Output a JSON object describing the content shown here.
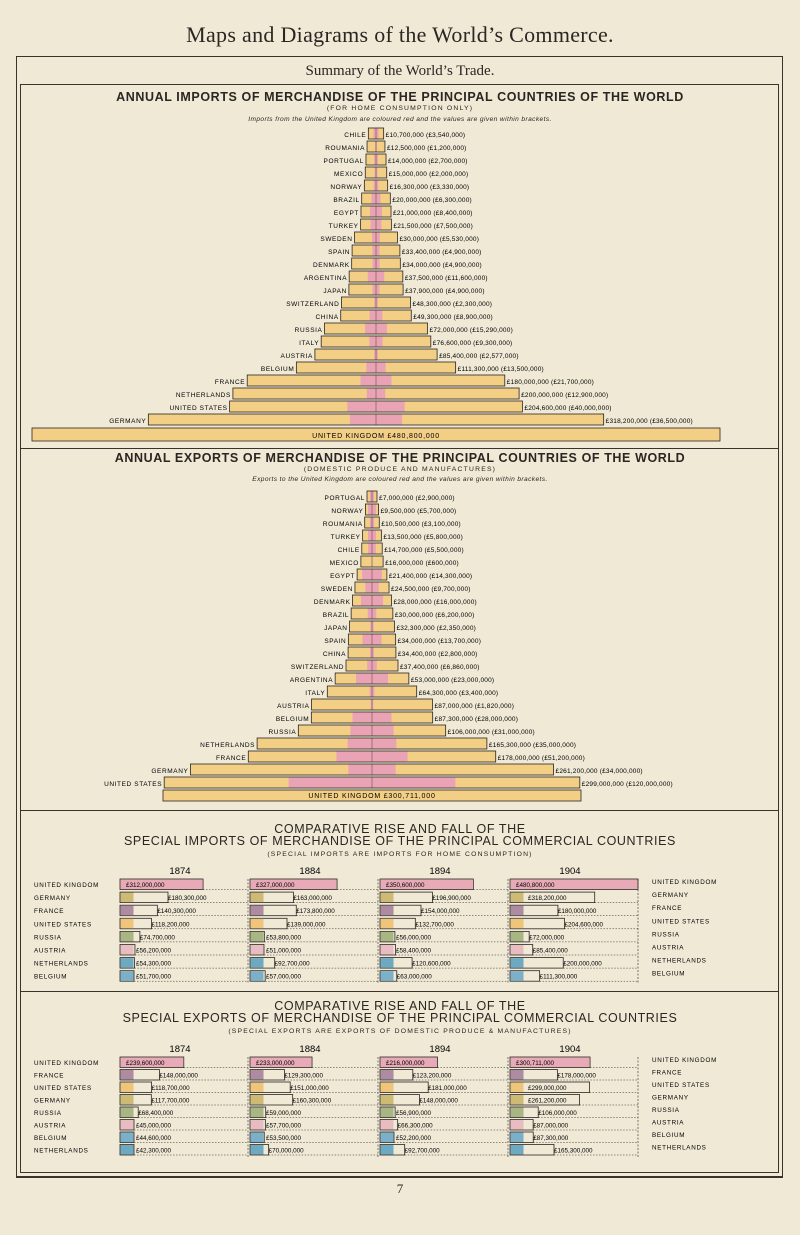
{
  "page": {
    "title": "Maps and Diagrams of the World’s Commerce.",
    "subtitle": "Summary of the World’s Trade.",
    "page_number": "7"
  },
  "colors": {
    "paper": "#efe9d6",
    "pyramid_bar": "#f3cf86",
    "uk_share": "#eaa3b4",
    "ink": "#2a2622",
    "united_kingdom": "#e7a3b3",
    "germany": "#c8b56a",
    "france": "#a6819a",
    "united_states": "#eec171",
    "russia": "#9fb07a",
    "austria": "#e7b8c0",
    "netherlands": "#5ea2bf",
    "belgium": "#6fa8c7"
  },
  "imports_section": {
    "title": "ANNUAL IMPORTS OF MERCHANDISE OF THE PRINCIPAL COUNTRIES OF THE WORLD",
    "subtitle": "(FOR HOME CONSUMPTION ONLY)",
    "note": "Imports from the United Kingdom are coloured red and the values are given within brackets."
  },
  "exports_section": {
    "title": "ANNUAL EXPORTS OF MERCHANDISE OF THE PRINCIPAL COUNTRIES OF THE WORLD",
    "subtitle": "(DOMESTIC PRODUCE AND MANUFACTURES)",
    "note": "Exports to the United Kingdom are coloured red and the values are given within brackets."
  },
  "special_imports_section": {
    "title_line1": "COMPARATIVE RISE AND FALL OF THE",
    "title_line2": "SPECIAL IMPORTS OF MERCHANDISE OF THE PRINCIPAL COMMERCIAL COUNTRIES",
    "subtitle": "(SPECIAL IMPORTS ARE IMPORTS FOR HOME CONSUMPTION)"
  },
  "special_exports_section": {
    "title_line1": "COMPARATIVE RISE AND FALL OF THE",
    "title_line2": "SPECIAL EXPORTS OF MERCHANDISE OF THE PRINCIPAL COMMERCIAL COUNTRIES",
    "subtitle": "(SPECIAL EXPORTS ARE EXPORTS OF DOMESTIC PRODUCE & MANUFACTURES)"
  },
  "chart_data": [
    {
      "type": "bar",
      "title": "ANNUAL IMPORTS OF MERCHANDISE OF THE PRINCIPAL COUNTRIES OF THE WORLD",
      "unit": "£",
      "categories": [
        "CHILE",
        "ROUMANIA",
        "PORTUGAL",
        "MEXICO",
        "NORWAY",
        "BRAZIL",
        "EGYPT",
        "TURKEY",
        "SWEDEN",
        "SPAIN",
        "DENMARK",
        "ARGENTINA",
        "JAPAN",
        "SWITZERLAND",
        "CHINA",
        "RUSSIA",
        "ITALY",
        "AUSTRIA",
        "BELGIUM",
        "FRANCE",
        "NETHERLANDS",
        "UNITED STATES",
        "GERMANY",
        "UNITED KINGDOM"
      ],
      "labels": [
        "£10,700,000 (£3,540,000)",
        "£12,500,000 (£1,200,000)",
        "£14,000,000 (£2,700,000)",
        "£15,000,000 (£2,000,000)",
        "£16,300,000 (£3,330,000)",
        "£20,000,000 (£6,300,000)",
        "£21,000,000 (£8,400,000)",
        "£21,500,000 (£7,500,000)",
        "£30,000,000 (£5,530,000)",
        "£33,400,000 (£4,900,000)",
        "£34,000,000 (£4,900,000)",
        "£37,500,000 (£11,600,000)",
        "£37,900,000 (£4,900,000)",
        "£48,300,000 (£2,300,000)",
        "£49,300,000 (£8,900,000)",
        "£72,000,000 (£15,290,000)",
        "£76,600,000 (£9,300,000)",
        "£85,400,000 (£2,577,000)",
        "£111,300,000 (£13,500,000)",
        "£180,000,000 (£21,700,000)",
        "£200,000,000 (£12,900,000)",
        "£204,600,000 (£40,000,000)",
        "£318,200,000 (£36,500,000)",
        "UNITED KINGDOM £480,800,000"
      ],
      "series": [
        {
          "name": "Imports",
          "values": [
            10700000,
            12500000,
            14000000,
            15000000,
            16300000,
            20000000,
            21000000,
            21500000,
            30000000,
            33400000,
            34000000,
            37500000,
            37900000,
            48300000,
            49300000,
            72000000,
            76600000,
            85400000,
            111300000,
            180000000,
            200000000,
            204600000,
            318200000,
            480800000
          ]
        },
        {
          "name": "Imports from the United Kingdom",
          "values": [
            3540000,
            1200000,
            2700000,
            2000000,
            3330000,
            6300000,
            8400000,
            7500000,
            5530000,
            4900000,
            4900000,
            11600000,
            4900000,
            2300000,
            8900000,
            15290000,
            9300000,
            2577000,
            13500000,
            21700000,
            12900000,
            40000000,
            36500000,
            null
          ]
        }
      ]
    },
    {
      "type": "bar",
      "title": "ANNUAL EXPORTS OF MERCHANDISE OF THE PRINCIPAL COUNTRIES OF THE WORLD",
      "unit": "£",
      "categories": [
        "PORTUGAL",
        "NORWAY",
        "ROUMANIA",
        "TURKEY",
        "CHILE",
        "MEXICO",
        "EGYPT",
        "SWEDEN",
        "DENMARK",
        "BRAZIL",
        "JAPAN",
        "SPAIN",
        "CHINA",
        "SWITZERLAND",
        "ARGENTINA",
        "ITALY",
        "AUSTRIA",
        "BELGIUM",
        "RUSSIA",
        "NETHERLANDS",
        "FRANCE",
        "GERMANY",
        "UNITED STATES",
        "UNITED KINGDOM"
      ],
      "labels": [
        "£7,000,000 (£2,900,000)",
        "£9,500,000 (£5,700,000)",
        "£10,500,000 (£3,100,000)",
        "£13,500,000 (£5,800,000)",
        "£14,700,000 (£5,500,000)",
        "£16,000,000 (£600,000)",
        "£21,400,000 (£14,300,000)",
        "£24,500,000 (£9,700,000)",
        "£28,000,000 (£16,000,000)",
        "£30,000,000 (£6,200,000)",
        "£32,300,000 (£2,350,000)",
        "£34,000,000 (£13,700,000)",
        "£34,400,000 (£2,800,000)",
        "£37,400,000 (£6,860,000)",
        "£53,000,000 (£23,000,000)",
        "£64,300,000 (£3,400,000)",
        "£87,000,000 (£1,820,000)",
        "£87,300,000 (£28,000,000)",
        "£106,000,000 (£31,000,000)",
        "£165,300,000 (£35,000,000)",
        "£178,000,000 (£51,200,000)",
        "£261,200,000 (£34,000,000)",
        "£299,000,000 (£120,000,000)",
        "UNITED KINGDOM £300,711,000"
      ],
      "series": [
        {
          "name": "Exports",
          "values": [
            7000000,
            9500000,
            10500000,
            13500000,
            14700000,
            16000000,
            21400000,
            24500000,
            28000000,
            30000000,
            32300000,
            34000000,
            34400000,
            37400000,
            53000000,
            64300000,
            87000000,
            87300000,
            106000000,
            165300000,
            178000000,
            261200000,
            299000000,
            300711000
          ]
        },
        {
          "name": "Exports to the United Kingdom",
          "values": [
            2900000,
            5700000,
            3100000,
            5800000,
            5500000,
            600000,
            14300000,
            9700000,
            16000000,
            6200000,
            2350000,
            13700000,
            2800000,
            6860000,
            23000000,
            3400000,
            1820000,
            28000000,
            31000000,
            35000000,
            51200000,
            34000000,
            120000000,
            null
          ]
        }
      ]
    },
    {
      "type": "bar",
      "title": "COMPARATIVE RISE AND FALL OF THE SPECIAL IMPORTS OF MERCHANDISE OF THE PRINCIPAL COMMERCIAL COUNTRIES",
      "unit": "£",
      "years": [
        "1874",
        "1884",
        "1894",
        "1904"
      ],
      "left_order": [
        "UNITED KINGDOM",
        "GERMANY",
        "FRANCE",
        "UNITED STATES",
        "RUSSIA",
        "AUSTRIA",
        "NETHERLANDS",
        "BELGIUM"
      ],
      "right_order": [
        "UNITED KINGDOM",
        "GERMANY",
        "FRANCE",
        "UNITED STATES",
        "RUSSIA",
        "AUSTRIA",
        "NETHERLANDS",
        "BELGIUM"
      ],
      "panels": [
        {
          "year": "1874",
          "rows": [
            {
              "country": "UNITED KINGDOM",
              "value": 312000000,
              "label": "£312,000,000"
            },
            {
              "country": "GERMANY",
              "value": 180300000,
              "label": "£180,300,000"
            },
            {
              "country": "FRANCE",
              "value": 140300000,
              "label": "£140,300,000"
            },
            {
              "country": "UNITED STATES",
              "value": 118200000,
              "label": "£118,200,000"
            },
            {
              "country": "RUSSIA",
              "value": 74700000,
              "label": "£74,700,000"
            },
            {
              "country": "AUSTRIA",
              "value": 56200000,
              "label": "£56,200,000"
            },
            {
              "country": "NETHERLANDS",
              "value": 54300000,
              "label": "£54,300,000"
            },
            {
              "country": "BELGIUM",
              "value": 51700000,
              "label": "£51,700,000"
            }
          ]
        },
        {
          "year": "1884",
          "rows": [
            {
              "country": "UNITED KINGDOM",
              "value": 327000000,
              "label": "£327,000,000"
            },
            {
              "country": "GERMANY",
              "value": 163000000,
              "label": "£163,000,000"
            },
            {
              "country": "FRANCE",
              "value": 173800000,
              "label": "£173,800,000"
            },
            {
              "country": "UNITED STATES",
              "value": 139000000,
              "label": "£139,000,000"
            },
            {
              "country": "RUSSIA",
              "value": 53800000,
              "label": "£53,800,000"
            },
            {
              "country": "AUSTRIA",
              "value": 51000000,
              "label": "£51,000,000"
            },
            {
              "country": "NETHERLANDS",
              "value": 92700000,
              "label": "£92,700,000"
            },
            {
              "country": "BELGIUM",
              "value": 57000000,
              "label": "£57,000,000"
            }
          ]
        },
        {
          "year": "1894",
          "rows": [
            {
              "country": "UNITED KINGDOM",
              "value": 350600000,
              "label": "£350,600,000"
            },
            {
              "country": "GERMANY",
              "value": 196900000,
              "label": "£196,900,000"
            },
            {
              "country": "FRANCE",
              "value": 154000000,
              "label": "£154,000,000"
            },
            {
              "country": "UNITED STATES",
              "value": 132700000,
              "label": "£132,700,000"
            },
            {
              "country": "RUSSIA",
              "value": 56000000,
              "label": "£56,000,000"
            },
            {
              "country": "AUSTRIA",
              "value": 58400000,
              "label": "£58,400,000"
            },
            {
              "country": "NETHERLANDS",
              "value": 120600000,
              "label": "£120,600,000"
            },
            {
              "country": "BELGIUM",
              "value": 63000000,
              "label": "£63,000,000"
            }
          ]
        },
        {
          "year": "1904",
          "rows": [
            {
              "country": "UNITED KINGDOM",
              "value": 480800000,
              "label": "£480,800,000"
            },
            {
              "country": "GERMANY",
              "value": 318200000,
              "label": "£318,200,000"
            },
            {
              "country": "FRANCE",
              "value": 180000000,
              "label": "£180,000,000"
            },
            {
              "country": "UNITED STATES",
              "value": 204600000,
              "label": "£204,600,000"
            },
            {
              "country": "RUSSIA",
              "value": 72000000,
              "label": "£72,000,000"
            },
            {
              "country": "AUSTRIA",
              "value": 85400000,
              "label": "£85,400,000"
            },
            {
              "country": "NETHERLANDS",
              "value": 200000000,
              "label": "£200,000,000"
            },
            {
              "country": "BELGIUM",
              "value": 111300000,
              "label": "£111,300,000"
            }
          ]
        }
      ]
    },
    {
      "type": "bar",
      "title": "COMPARATIVE RISE AND FALL OF THE SPECIAL EXPORTS OF MERCHANDISE OF THE PRINCIPAL COMMERCIAL COUNTRIES",
      "unit": "£",
      "years": [
        "1874",
        "1884",
        "1894",
        "1904"
      ],
      "left_order": [
        "UNITED KINGDOM",
        "FRANCE",
        "UNITED STATES",
        "GERMANY",
        "RUSSIA",
        "AUSTRIA",
        "BELGIUM",
        "NETHERLANDS"
      ],
      "right_order": [
        "UNITED KINGDOM",
        "FRANCE",
        "UNITED STATES",
        "GERMANY",
        "RUSSIA",
        "AUSTRIA",
        "BELGIUM",
        "NETHERLANDS"
      ],
      "panels": [
        {
          "year": "1874",
          "rows": [
            {
              "country": "UNITED KINGDOM",
              "value": 239600000,
              "label": "£239,600,000"
            },
            {
              "country": "FRANCE",
              "value": 148000000,
              "label": "£148,000,000"
            },
            {
              "country": "UNITED STATES",
              "value": 118700000,
              "label": "£118,700,000"
            },
            {
              "country": "GERMANY",
              "value": 117700000,
              "label": "£117,700,000"
            },
            {
              "country": "RUSSIA",
              "value": 68400000,
              "label": "£68,400,000"
            },
            {
              "country": "AUSTRIA",
              "value": 45000000,
              "label": "£45,000,000"
            },
            {
              "country": "BELGIUM",
              "value": 44600000,
              "label": "£44,600,000"
            },
            {
              "country": "NETHERLANDS",
              "value": 42300000,
              "label": "£42,300,000"
            }
          ]
        },
        {
          "year": "1884",
          "rows": [
            {
              "country": "UNITED KINGDOM",
              "value": 233000000,
              "label": "£233,000,000"
            },
            {
              "country": "FRANCE",
              "value": 129300000,
              "label": "£129,300,000"
            },
            {
              "country": "UNITED STATES",
              "value": 151000000,
              "label": "£151,000,000"
            },
            {
              "country": "GERMANY",
              "value": 160300000,
              "label": "£160,300,000"
            },
            {
              "country": "RUSSIA",
              "value": 59000000,
              "label": "£59,000,000"
            },
            {
              "country": "AUSTRIA",
              "value": 57700000,
              "label": "£57,700,000"
            },
            {
              "country": "BELGIUM",
              "value": 53500000,
              "label": "£53,500,000"
            },
            {
              "country": "NETHERLANDS",
              "value": 70000000,
              "label": "£70,000,000"
            }
          ]
        },
        {
          "year": "1894",
          "rows": [
            {
              "country": "UNITED KINGDOM",
              "value": 216000000,
              "label": "£216,000,000"
            },
            {
              "country": "FRANCE",
              "value": 123200000,
              "label": "£123,200,000"
            },
            {
              "country": "UNITED STATES",
              "value": 181000000,
              "label": "£181,000,000"
            },
            {
              "country": "GERMANY",
              "value": 148000000,
              "label": "£148,000,000"
            },
            {
              "country": "RUSSIA",
              "value": 56900000,
              "label": "£56,900,000"
            },
            {
              "country": "AUSTRIA",
              "value": 66300000,
              "label": "£66,300,000"
            },
            {
              "country": "BELGIUM",
              "value": 52200000,
              "label": "£52,200,000"
            },
            {
              "country": "NETHERLANDS",
              "value": 92700000,
              "label": "£92,700,000"
            }
          ]
        },
        {
          "year": "1904",
          "rows": [
            {
              "country": "UNITED KINGDOM",
              "value": 300711000,
              "label": "£300,711,000"
            },
            {
              "country": "FRANCE",
              "value": 178000000,
              "label": "£178,000,000"
            },
            {
              "country": "UNITED STATES",
              "value": 299000000,
              "label": "£299,000,000"
            },
            {
              "country": "GERMANY",
              "value": 261200000,
              "label": "£261,200,000"
            },
            {
              "country": "RUSSIA",
              "value": 106000000,
              "label": "£106,000,000"
            },
            {
              "country": "AUSTRIA",
              "value": 87000000,
              "label": "£87,000,000"
            },
            {
              "country": "BELGIUM",
              "value": 87300000,
              "label": "£87,300,000"
            },
            {
              "country": "NETHERLANDS",
              "value": 165300000,
              "label": "£165,300,000"
            }
          ]
        }
      ]
    }
  ]
}
